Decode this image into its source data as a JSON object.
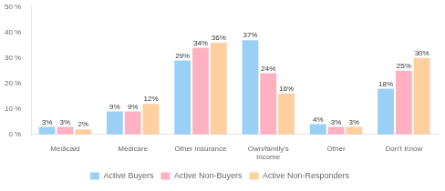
{
  "chart_data": {
    "type": "bar",
    "categories": [
      "Medicaid",
      "Medicare",
      "Other insurance",
      "Own/family's\nincome",
      "Other",
      "Don't Know"
    ],
    "series": [
      {
        "name": "Active Buyers",
        "values": [
          3,
          9,
          29,
          37,
          4,
          18
        ],
        "value_labels": [
          "3%",
          "9%",
          "29%",
          "37%",
          "4%",
          "18%"
        ]
      },
      {
        "name": "Active Non-Buyers",
        "values": [
          3,
          9,
          34,
          24,
          3,
          25
        ],
        "value_labels": [
          "3%",
          "9%",
          "34%",
          "24%",
          "3%",
          "25%"
        ]
      },
      {
        "name": "Active Non-Responders",
        "values": [
          2,
          12,
          36,
          16,
          3,
          30
        ],
        "value_labels": [
          "2%",
          "12%",
          "36%",
          "16%",
          "3%",
          "30%"
        ]
      }
    ],
    "ylim": [
      0,
      50
    ],
    "yticks": [
      {
        "value": 0,
        "label": "0 %"
      },
      {
        "value": 10,
        "label": "10 %"
      },
      {
        "value": 20,
        "label": "20 %"
      },
      {
        "value": 30,
        "label": "30 %"
      },
      {
        "value": 40,
        "label": "40 %"
      },
      {
        "value": 50,
        "label": "50 %"
      }
    ],
    "grid": false,
    "legend": "bottom",
    "data_labels": true
  }
}
